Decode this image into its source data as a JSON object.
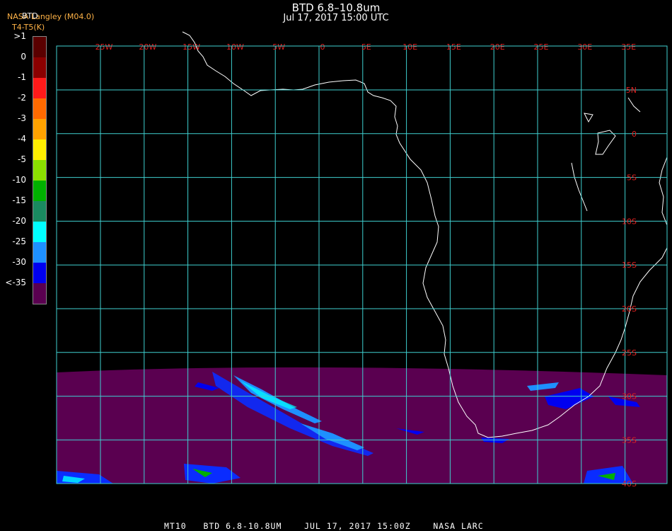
{
  "title": {
    "line1": "BTD 6.8–10.8um",
    "line2": "Jul 17, 2017 15:00 UTC"
  },
  "legend": {
    "header": "BTD",
    "source": "NASA Langley (M04.0)",
    "units": "T4-T5(K)",
    "ticks": [
      ">1",
      "0",
      "-1",
      "-2",
      "-3",
      "-4",
      "-5",
      "-10",
      "-15",
      "-20",
      "-25",
      "-30",
      "<-35"
    ],
    "colors": [
      "#5a0000",
      "#8b0000",
      "#ff1a1a",
      "#ff6a00",
      "#ffa200",
      "#ffee00",
      "#8be000",
      "#00b000",
      "#1a8a60",
      "#00ffff",
      "#1e90ff",
      "#0000f0",
      "#5a0050"
    ]
  },
  "map": {
    "background": "#000000",
    "grid_color": "#3fd0d0",
    "coast_color": "#ffffff",
    "cloud_field_color": "#5a0050",
    "label_color": "#e02020",
    "lon_labels": [
      "25W",
      "20W",
      "15W",
      "10W",
      "5W",
      "0",
      "5E",
      "10E",
      "15E",
      "20E",
      "25E",
      "30E",
      "35E"
    ],
    "lat_labels": [
      "5N",
      "0",
      "5S",
      "10S",
      "15S",
      "20S",
      "25S",
      "30S",
      "35S",
      "40S"
    ]
  },
  "footer": "MT10   BTD 6.8-10.8UM    JUL 17, 2017 15:00Z    NASA LARC"
}
